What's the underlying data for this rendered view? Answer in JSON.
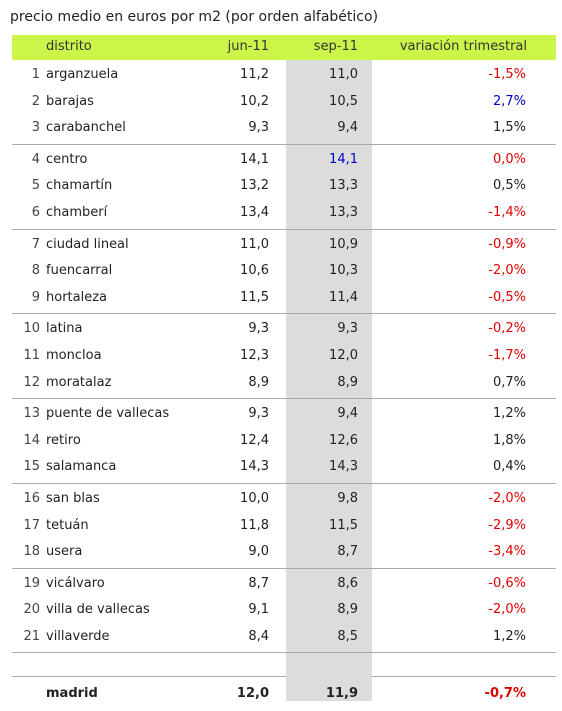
{
  "title": "precio medio en euros por m2 (por orden alfabético)",
  "headers": {
    "distrito": "distrito",
    "jun": "jun-11",
    "sep": "sep-11",
    "variacion": "variación trimestral"
  },
  "colors": {
    "header_bg": "#ccf54a",
    "negative": "#e00000",
    "positive_highlight": "#0000cc",
    "neutral": "#222222",
    "sep_column_bg": "#dcdcdc"
  },
  "groups": [
    [
      {
        "n": "1",
        "name": "arganzuela",
        "jun": "11,2",
        "sep": "11,0",
        "var": "-1,5%",
        "var_color": "negative"
      },
      {
        "n": "2",
        "name": "barajas",
        "jun": "10,2",
        "sep": "10,5",
        "var": "2,7%",
        "var_color": "positive_highlight"
      },
      {
        "n": "3",
        "name": "carabanchel",
        "jun": "9,3",
        "sep": "9,4",
        "var": "1,5%",
        "var_color": "neutral"
      }
    ],
    [
      {
        "n": "4",
        "name": "centro",
        "jun": "14,1",
        "sep": "14,1",
        "sep_color": "positive_highlight",
        "var": "0,0%",
        "var_color": "negative"
      },
      {
        "n": "5",
        "name": "chamartín",
        "jun": "13,2",
        "sep": "13,3",
        "var": "0,5%",
        "var_color": "neutral"
      },
      {
        "n": "6",
        "name": "chamberí",
        "jun": "13,4",
        "sep": "13,3",
        "var": "-1,4%",
        "var_color": "negative"
      }
    ],
    [
      {
        "n": "7",
        "name": "ciudad lineal",
        "jun": "11,0",
        "sep": "10,9",
        "var": "-0,9%",
        "var_color": "negative"
      },
      {
        "n": "8",
        "name": "fuencarral",
        "jun": "10,6",
        "sep": "10,3",
        "var": "-2,0%",
        "var_color": "negative"
      },
      {
        "n": "9",
        "name": "hortaleza",
        "jun": "11,5",
        "sep": "11,4",
        "var": "-0,5%",
        "var_color": "negative"
      }
    ],
    [
      {
        "n": "10",
        "name": "latina",
        "jun": "9,3",
        "sep": "9,3",
        "var": "-0,2%",
        "var_color": "negative"
      },
      {
        "n": "11",
        "name": "moncloa",
        "jun": "12,3",
        "sep": "12,0",
        "var": "-1,7%",
        "var_color": "negative"
      },
      {
        "n": "12",
        "name": "moratalaz",
        "jun": "8,9",
        "sep": "8,9",
        "var": "0,7%",
        "var_color": "neutral"
      }
    ],
    [
      {
        "n": "13",
        "name": "puente de vallecas",
        "jun": "9,3",
        "sep": "9,4",
        "var": "1,2%",
        "var_color": "neutral"
      },
      {
        "n": "14",
        "name": "retiro",
        "jun": "12,4",
        "sep": "12,6",
        "var": "1,8%",
        "var_color": "neutral"
      },
      {
        "n": "15",
        "name": "salamanca",
        "jun": "14,3",
        "sep": "14,3",
        "var": "0,4%",
        "var_color": "neutral"
      }
    ],
    [
      {
        "n": "16",
        "name": "san blas",
        "jun": "10,0",
        "sep": "9,8",
        "var": "-2,0%",
        "var_color": "negative"
      },
      {
        "n": "17",
        "name": "tetuán",
        "jun": "11,8",
        "sep": "11,5",
        "var": "-2,9%",
        "var_color": "negative"
      },
      {
        "n": "18",
        "name": "usera",
        "jun": "9,0",
        "sep": "8,7",
        "var": "-3,4%",
        "var_color": "negative"
      }
    ],
    [
      {
        "n": "19",
        "name": "vicálvaro",
        "jun": "8,7",
        "sep": "8,6",
        "var": "-0,6%",
        "var_color": "negative"
      },
      {
        "n": "20",
        "name": "villa de vallecas",
        "jun": "9,1",
        "sep": "8,9",
        "var": "-2,0%",
        "var_color": "negative"
      },
      {
        "n": "21",
        "name": "villaverde",
        "jun": "8,4",
        "sep": "8,5",
        "var": "1,2%",
        "var_color": "neutral"
      }
    ]
  ],
  "total": {
    "name": "madrid",
    "jun": "12,0",
    "sep": "11,9",
    "var": "-0,7%",
    "var_color": "negative"
  }
}
